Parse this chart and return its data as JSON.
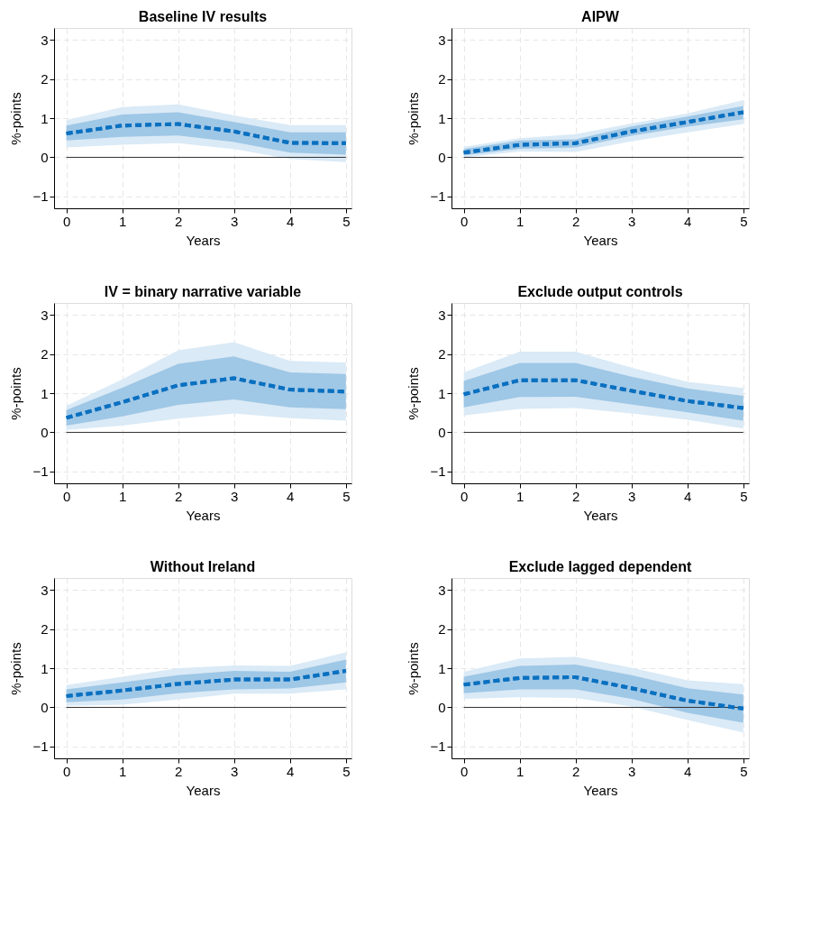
{
  "chart_data": [
    {
      "type": "line",
      "title": "Baseline IV results",
      "xlabel": "Years",
      "ylabel": "%-points",
      "x": [
        0,
        1,
        2,
        3,
        4,
        5
      ],
      "xlim": [
        -0.22,
        5.1
      ],
      "xticks": [
        0,
        1,
        2,
        3,
        4,
        5
      ],
      "ylim": [
        -1.3,
        3.3
      ],
      "yticks": [
        -1,
        0,
        1,
        2,
        3
      ],
      "grid": true,
      "line_style": "dashed",
      "ref_lines": [
        {
          "axis": "y",
          "value": 0,
          "color": "#333333"
        }
      ],
      "series": [
        {
          "color": "#0a70c0",
          "values": [
            0.61,
            0.81,
            0.85,
            0.66,
            0.37,
            0.36
          ],
          "lower": [
            0.25,
            0.32,
            0.36,
            0.21,
            -0.04,
            -0.12
          ],
          "upper": [
            0.95,
            1.28,
            1.35,
            1.07,
            0.82,
            0.82
          ]
        },
        {
          "color": "#0a70c0",
          "values": [
            0.61,
            0.81,
            0.85,
            0.66,
            0.37,
            0.36
          ],
          "lower": [
            0.43,
            0.52,
            0.56,
            0.39,
            0.12,
            0.07
          ],
          "upper": [
            0.81,
            1.09,
            1.15,
            0.9,
            0.64,
            0.64
          ]
        }
      ]
    },
    {
      "type": "line",
      "title": "AIPW",
      "xlabel": "Years",
      "ylabel": "%-points",
      "x": [
        0,
        1,
        2,
        3,
        4,
        5
      ],
      "xlim": [
        -0.22,
        5.1
      ],
      "xticks": [
        0,
        1,
        2,
        3,
        4,
        5
      ],
      "ylim": [
        -1.3,
        3.3
      ],
      "yticks": [
        -1,
        0,
        1,
        2,
        3
      ],
      "grid": true,
      "line_style": "dashed",
      "ref_lines": [
        {
          "axis": "y",
          "value": 0,
          "color": "#333333"
        }
      ],
      "series": [
        {
          "color": "#0a70c0",
          "values": [
            0.12,
            0.32,
            0.36,
            0.66,
            0.9,
            1.15
          ],
          "lower": [
            0.0,
            0.15,
            0.14,
            0.41,
            0.64,
            0.85
          ],
          "upper": [
            0.27,
            0.49,
            0.59,
            0.86,
            1.12,
            1.46
          ]
        },
        {
          "color": "#0a70c0",
          "values": [
            0.12,
            0.32,
            0.36,
            0.66,
            0.9,
            1.15
          ],
          "lower": [
            0.05,
            0.22,
            0.25,
            0.55,
            0.78,
            0.97
          ],
          "upper": [
            0.21,
            0.43,
            0.46,
            0.79,
            1.04,
            1.31
          ]
        }
      ]
    },
    {
      "type": "line",
      "title": "IV = binary narrative variable",
      "xlabel": "Years",
      "ylabel": "%-points",
      "x": [
        0,
        1,
        2,
        3,
        4,
        5
      ],
      "xlim": [
        -0.22,
        5.1
      ],
      "xticks": [
        0,
        1,
        2,
        3,
        4,
        5
      ],
      "ylim": [
        -1.3,
        3.3
      ],
      "yticks": [
        -1,
        0,
        1,
        2,
        3
      ],
      "grid": true,
      "line_style": "dashed",
      "ref_lines": [
        {
          "axis": "y",
          "value": 0,
          "color": "#333333"
        }
      ],
      "series": [
        {
          "color": "#0a70c0",
          "values": [
            0.37,
            0.77,
            1.2,
            1.38,
            1.09,
            1.04
          ],
          "lower": [
            0.06,
            0.17,
            0.35,
            0.48,
            0.36,
            0.3
          ],
          "upper": [
            0.68,
            1.35,
            2.09,
            2.3,
            1.82,
            1.78
          ]
        },
        {
          "color": "#0a70c0",
          "values": [
            0.37,
            0.77,
            1.2,
            1.38,
            1.09,
            1.04
          ],
          "lower": [
            0.17,
            0.41,
            0.7,
            0.84,
            0.64,
            0.59
          ],
          "upper": [
            0.57,
            1.14,
            1.75,
            1.94,
            1.53,
            1.49
          ]
        }
      ]
    },
    {
      "type": "line",
      "title": "Exclude output controls",
      "xlabel": "Years",
      "ylabel": "%-points",
      "x": [
        0,
        1,
        2,
        3,
        4,
        5
      ],
      "xlim": [
        -0.22,
        5.1
      ],
      "xticks": [
        0,
        1,
        2,
        3,
        4,
        5
      ],
      "ylim": [
        -1.3,
        3.3
      ],
      "yticks": [
        -1,
        0,
        1,
        2,
        3
      ],
      "grid": true,
      "line_style": "dashed",
      "ref_lines": [
        {
          "axis": "y",
          "value": 0,
          "color": "#333333"
        }
      ],
      "series": [
        {
          "color": "#0a70c0",
          "values": [
            0.97,
            1.33,
            1.33,
            1.06,
            0.8,
            0.62
          ],
          "lower": [
            0.43,
            0.6,
            0.62,
            0.48,
            0.32,
            0.1
          ],
          "upper": [
            1.53,
            2.06,
            2.06,
            1.65,
            1.29,
            1.13
          ]
        },
        {
          "color": "#0a70c0",
          "values": [
            0.97,
            1.33,
            1.33,
            1.06,
            0.8,
            0.62
          ],
          "lower": [
            0.64,
            0.9,
            0.91,
            0.71,
            0.51,
            0.3
          ],
          "upper": [
            1.31,
            1.77,
            1.77,
            1.42,
            1.12,
            0.93
          ]
        }
      ]
    },
    {
      "type": "line",
      "title": "Without Ireland",
      "xlabel": "Years",
      "ylabel": "%-points",
      "x": [
        0,
        1,
        2,
        3,
        4,
        5
      ],
      "xlim": [
        -0.22,
        5.1
      ],
      "xticks": [
        0,
        1,
        2,
        3,
        4,
        5
      ],
      "ylim": [
        -1.3,
        3.3
      ],
      "yticks": [
        -1,
        0,
        1,
        2,
        3
      ],
      "grid": true,
      "line_style": "dashed",
      "ref_lines": [
        {
          "axis": "y",
          "value": 0,
          "color": "#333333"
        }
      ],
      "series": [
        {
          "color": "#0a70c0",
          "values": [
            0.29,
            0.43,
            0.6,
            0.71,
            0.71,
            0.93
          ],
          "lower": [
            0.04,
            0.07,
            0.2,
            0.35,
            0.35,
            0.46
          ],
          "upper": [
            0.57,
            0.78,
            1.0,
            1.07,
            1.06,
            1.4
          ]
        },
        {
          "color": "#0a70c0",
          "values": [
            0.29,
            0.43,
            0.6,
            0.71,
            0.71,
            0.93
          ],
          "lower": [
            0.13,
            0.2,
            0.36,
            0.46,
            0.48,
            0.64
          ],
          "upper": [
            0.46,
            0.64,
            0.82,
            0.93,
            0.91,
            1.22
          ]
        }
      ]
    },
    {
      "type": "line",
      "title": "Exclude lagged dependent",
      "xlabel": "Years",
      "ylabel": "%-points",
      "x": [
        0,
        1,
        2,
        3,
        4,
        5
      ],
      "xlim": [
        -0.22,
        5.1
      ],
      "xticks": [
        0,
        1,
        2,
        3,
        4,
        5
      ],
      "ylim": [
        -1.3,
        3.3
      ],
      "yticks": [
        -1,
        0,
        1,
        2,
        3
      ],
      "grid": true,
      "line_style": "dashed",
      "ref_lines": [
        {
          "axis": "y",
          "value": 0,
          "color": "#333333"
        }
      ],
      "series": [
        {
          "color": "#0a70c0",
          "values": [
            0.58,
            0.75,
            0.77,
            0.49,
            0.17,
            -0.03
          ],
          "lower": [
            0.22,
            0.26,
            0.24,
            0.02,
            -0.32,
            -0.64
          ],
          "upper": [
            0.91,
            1.25,
            1.29,
            1.01,
            0.69,
            0.59
          ]
        },
        {
          "color": "#0a70c0",
          "values": [
            0.58,
            0.75,
            0.77,
            0.49,
            0.17,
            -0.03
          ],
          "lower": [
            0.36,
            0.46,
            0.46,
            0.22,
            -0.14,
            -0.39
          ],
          "upper": [
            0.78,
            1.06,
            1.09,
            0.82,
            0.49,
            0.33
          ]
        }
      ]
    }
  ]
}
